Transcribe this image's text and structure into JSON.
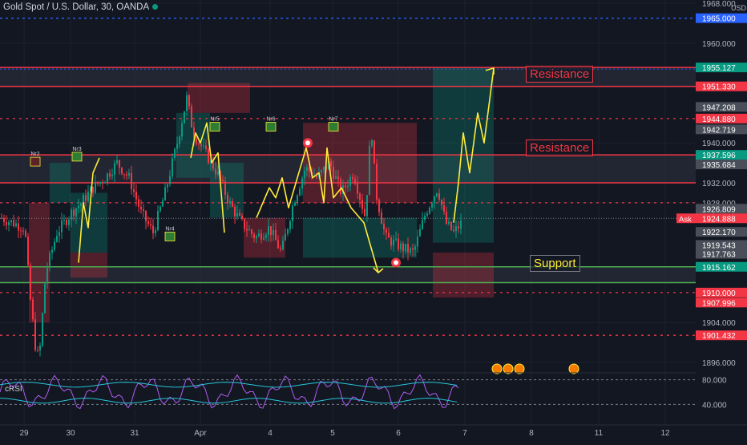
{
  "header": {
    "title": "Gold Spot / U.S. Dollar, 30, OANDA"
  },
  "price_axis": {
    "currency": "USD",
    "tick_labels": [
      "1968.000",
      "1960.000",
      "1940.000",
      "1932.000",
      "1928.000",
      "1904.000",
      "1896.000"
    ],
    "tick_values": [
      1968,
      1960,
      1940,
      1932,
      1928,
      1904,
      1896
    ],
    "badges": [
      {
        "label": "1965.000",
        "value": 1965.0,
        "color": "#2962ff"
      },
      {
        "label": "1955.127",
        "value": 1955.127,
        "color": "#089981"
      },
      {
        "label": "1951.330",
        "value": 1951.33,
        "color": "#f23645"
      },
      {
        "label": "1947.208",
        "value": 1947.208,
        "color": "#4a4e59"
      },
      {
        "label": "1944.880",
        "value": 1944.88,
        "color": "#f23645"
      },
      {
        "label": "1942.719",
        "value": 1942.719,
        "color": "#4a4e59"
      },
      {
        "label": "1937.596",
        "value": 1937.596,
        "color": "#089981"
      },
      {
        "label": "1935.684",
        "value": 1935.684,
        "color": "#4a4e59"
      },
      {
        "label": "1926.809",
        "value": 1926.809,
        "color": "#4a4e59"
      },
      {
        "label": "1924.888",
        "value": 1924.888,
        "color": "#f23645"
      },
      {
        "label": "1922.170",
        "value": 1922.17,
        "color": "#4a4e59"
      },
      {
        "label": "1919.543",
        "value": 1919.543,
        "color": "#4a4e59"
      },
      {
        "label": "1917.763",
        "value": 1917.763,
        "color": "#4a4e59"
      },
      {
        "label": "1915.162",
        "value": 1915.162,
        "color": "#089981"
      },
      {
        "label": "1910.000",
        "value": 1910.0,
        "color": "#f23645"
      },
      {
        "label": "1907.996",
        "value": 1907.996,
        "color": "#f23645"
      },
      {
        "label": "1901.432",
        "value": 1901.432,
        "color": "#f23645"
      }
    ],
    "ask_label": "Ask"
  },
  "time_axis": {
    "labels": [
      "29",
      "30",
      "31",
      "Apr",
      "4",
      "5",
      "6",
      "7",
      "8",
      "11",
      "12"
    ]
  },
  "annotations": {
    "resistance_label": "Resistance",
    "support_label": "Support",
    "trade_markers": [
      "Nr2",
      "Nr3",
      "Nr4",
      "Nr5",
      "Nr6",
      "Nr7"
    ]
  },
  "indicator": {
    "name": "cRSI",
    "tick_labels": [
      "80.000",
      "40.000"
    ],
    "tick_values": [
      80,
      40
    ]
  },
  "colors": {
    "background": "#131722",
    "bull": "#089981",
    "bear": "#f23645",
    "resistance": "#f23645",
    "support": "#4caf50",
    "drawing": "#ffeb3b",
    "crsi": "#b05cf0",
    "bands": "#26c6da"
  },
  "chart_data": {
    "type": "candlestick",
    "title": "Gold Spot / U.S. Dollar, 30, OANDA",
    "y_range": [
      1893,
      1968
    ],
    "horizontal_levels": [
      1965.0,
      1955.127,
      1951.33,
      1944.88,
      1937.596,
      1932.0,
      1928.0,
      1915.162,
      1912.0,
      1910.0,
      1901.432
    ],
    "resistance_levels": [
      1955.127,
      1951.33,
      1937.596,
      1932.0
    ],
    "support_levels": [
      1915.162,
      1912.0
    ]
  }
}
